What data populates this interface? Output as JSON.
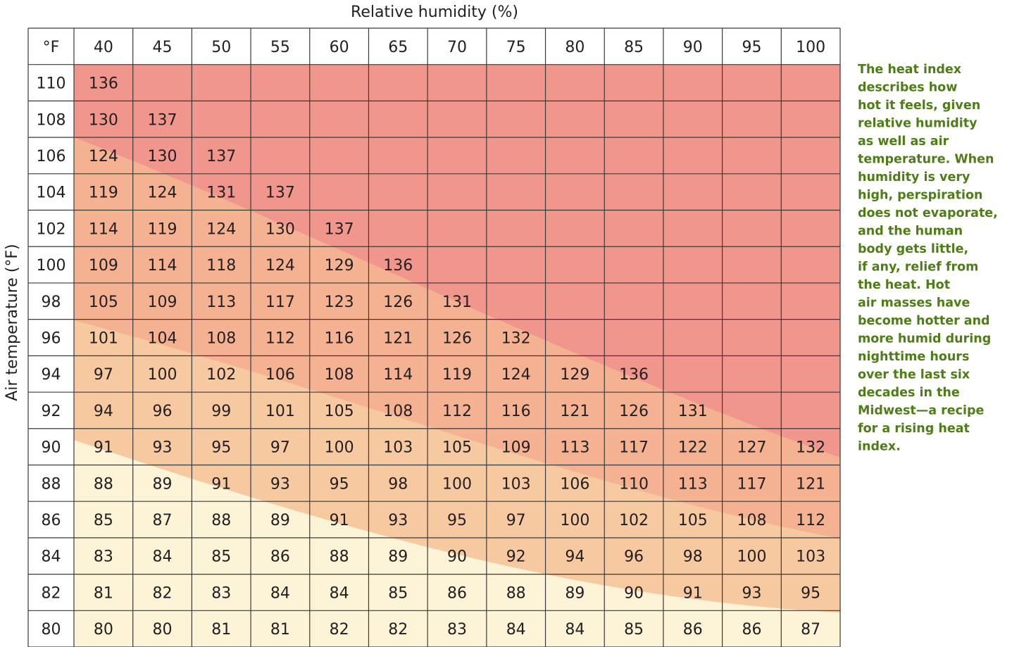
{
  "title": "Relative humidity (%)",
  "y_label": "Air temperature (°F)",
  "table": {
    "header": [
      "°F",
      40,
      45,
      50,
      55,
      60,
      65,
      70,
      75,
      80,
      85,
      90,
      95,
      100
    ],
    "rows": [
      [
        110,
        136
      ],
      [
        108,
        130,
        137
      ],
      [
        106,
        124,
        130,
        137
      ],
      [
        104,
        119,
        124,
        131,
        137
      ],
      [
        102,
        114,
        119,
        124,
        130,
        137
      ],
      [
        100,
        109,
        114,
        118,
        124,
        129,
        136
      ],
      [
        98,
        105,
        109,
        113,
        117,
        123,
        126,
        131
      ],
      [
        96,
        101,
        104,
        108,
        112,
        116,
        121,
        126,
        132
      ],
      [
        94,
        97,
        100,
        102,
        106,
        108,
        114,
        119,
        124,
        129,
        136
      ],
      [
        92,
        94,
        96,
        99,
        101,
        105,
        108,
        112,
        116,
        121,
        126,
        131
      ],
      [
        90,
        91,
        93,
        95,
        97,
        100,
        103,
        105,
        109,
        113,
        117,
        122,
        127,
        132
      ],
      [
        88,
        88,
        89,
        91,
        93,
        95,
        98,
        100,
        103,
        106,
        110,
        113,
        117,
        121
      ],
      [
        86,
        85,
        87,
        88,
        89,
        91,
        93,
        95,
        97,
        100,
        102,
        105,
        108,
        112
      ],
      [
        84,
        83,
        84,
        85,
        86,
        88,
        89,
        90,
        92,
        94,
        96,
        98,
        100,
        103
      ],
      [
        82,
        81,
        82,
        83,
        84,
        84,
        85,
        86,
        88,
        89,
        90,
        91,
        93,
        95
      ],
      [
        80,
        80,
        80,
        81,
        81,
        82,
        82,
        83,
        84,
        84,
        85,
        86,
        86,
        87
      ]
    ]
  },
  "note": [
    "The heat index",
    "describes how",
    "hot it feels, given",
    "relative humidity",
    "as well as air",
    "temperature. When",
    "humidity is very",
    "high, perspiration",
    "does not evaporate,",
    "and the human",
    "body gets little,",
    "if any, relief from",
    "the heat. Hot",
    "air masses have",
    "become hotter and",
    "more humid during",
    "nighttime hours",
    "over the last six",
    "decades in the",
    "Midwest—a recipe",
    "for a rising heat",
    "index."
  ]
}
